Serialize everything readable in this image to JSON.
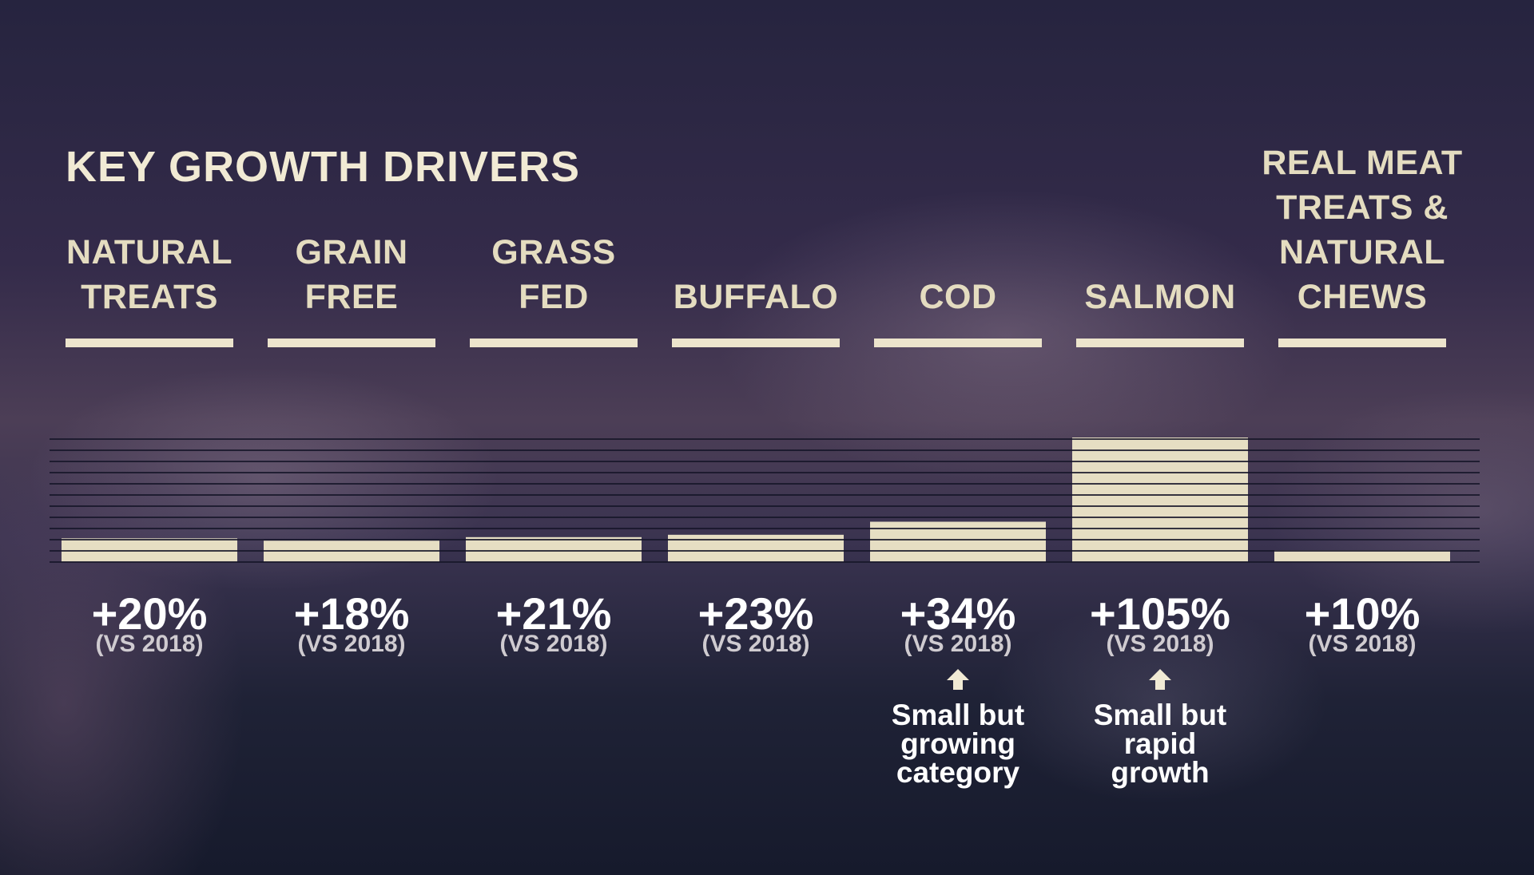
{
  "title": "KEY GROWTH DRIVERS",
  "sublabel": "(VS 2018)",
  "colors": {
    "text": "#f1ead4",
    "bar": "#e6dec3",
    "line": "#161629",
    "background": "#2a2640"
  },
  "chart_data": {
    "type": "bar",
    "categories": [
      "NATURAL\nTREATS",
      "GRAIN\nFREE",
      "GRASS\nFED",
      "BUFFALO",
      "COD",
      "SALMON",
      "REAL MEAT\nTREATS &\nNATURAL\nCHEWS"
    ],
    "values": [
      20,
      18,
      21,
      23,
      34,
      105,
      10
    ],
    "value_labels": [
      "+20%",
      "+18%",
      "+21%",
      "+23%",
      "+34%",
      "+105%",
      "+10%"
    ],
    "unit": "%",
    "ylim": [
      0,
      105
    ],
    "grid": true,
    "legend": "none",
    "annotations": [
      {
        "category_index": 4,
        "text": "Small but\ngrowing\ncategory"
      },
      {
        "category_index": 5,
        "text": "Small but\nrapid\ngrowth"
      }
    ]
  }
}
